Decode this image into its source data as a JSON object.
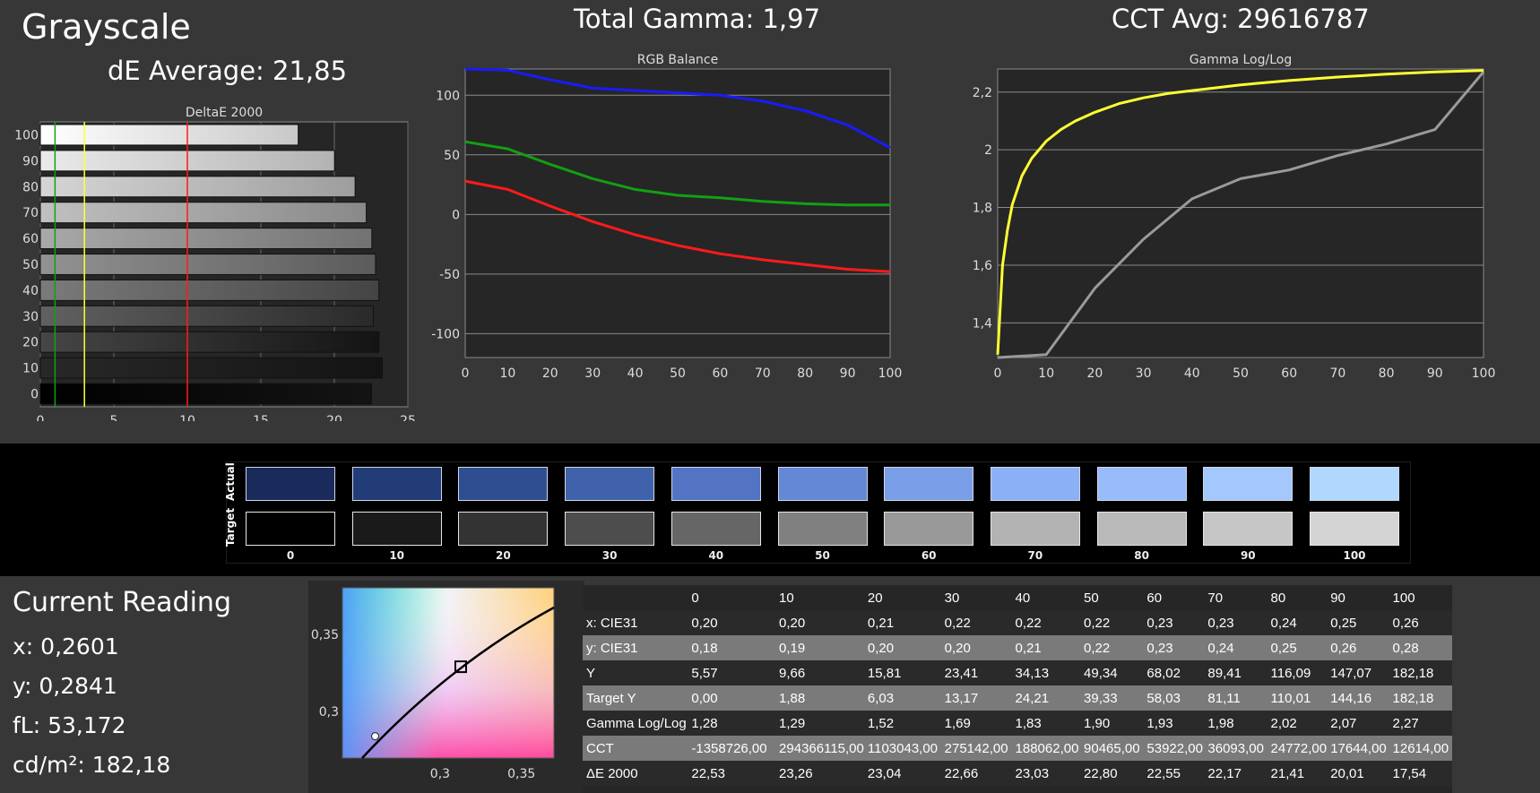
{
  "header": {
    "title": "Grayscale",
    "de_average": "dE Average: 21,85",
    "total_gamma": "Total Gamma: 1,97",
    "cct_avg": "CCT Avg: 29616787"
  },
  "colors": {
    "bg": "#373737",
    "plot_bg": "#262626",
    "red": "#ff1a1a",
    "green": "#12a012",
    "blue": "#1a1aff",
    "yellow": "#ffff33",
    "gray": "#9a9a9a"
  },
  "chart_data": [
    {
      "type": "bar",
      "title": "DeltaE 2000",
      "orientation": "horizontal",
      "categories": [
        "100",
        "90",
        "80",
        "70",
        "60",
        "50",
        "40",
        "30",
        "20",
        "10",
        "0"
      ],
      "values": [
        17.54,
        20.01,
        21.41,
        22.17,
        22.55,
        22.8,
        23.03,
        22.66,
        23.04,
        23.26,
        22.53
      ],
      "xlim": [
        0,
        25
      ],
      "xticks": [
        "0",
        "5",
        "10",
        "15",
        "20",
        "25"
      ],
      "reference_lines": [
        {
          "value": 1,
          "color": "green"
        },
        {
          "value": 3,
          "color": "yellow"
        },
        {
          "value": 10,
          "color": "red"
        }
      ],
      "grid": true
    },
    {
      "type": "line",
      "title": "RGB Balance",
      "x": [
        0,
        10,
        20,
        30,
        40,
        50,
        60,
        70,
        80,
        90,
        100
      ],
      "xlim": [
        0,
        100
      ],
      "ylim": [
        -120,
        122
      ],
      "xticks": [
        "0",
        "10",
        "20",
        "30",
        "40",
        "50",
        "60",
        "70",
        "80",
        "90",
        "100"
      ],
      "yticks": [
        {
          "value": 100,
          "label": "100"
        },
        {
          "value": 50,
          "label": "50"
        },
        {
          "value": 0,
          "label": "0"
        },
        {
          "value": -50,
          "label": "-50"
        },
        {
          "value": -100,
          "label": "-100"
        }
      ],
      "series": [
        {
          "color": "blue",
          "values": [
            122,
            121,
            113,
            106,
            104,
            102,
            100,
            95,
            87,
            75,
            56
          ]
        },
        {
          "color": "green",
          "values": [
            61,
            55,
            42,
            30,
            21,
            16,
            14,
            11,
            9,
            8,
            8
          ]
        },
        {
          "color": "red",
          "values": [
            28,
            21,
            7,
            -6,
            -17,
            -26,
            -33,
            -38,
            -42,
            -46,
            -48
          ]
        }
      ],
      "grid": true
    },
    {
      "type": "line",
      "title": "Gamma Log/Log",
      "x": [
        0,
        10,
        20,
        30,
        40,
        50,
        60,
        70,
        80,
        90,
        100
      ],
      "xlim": [
        0,
        100
      ],
      "ylim": [
        1.28,
        2.28
      ],
      "xticks": [
        "0",
        "10",
        "20",
        "30",
        "40",
        "50",
        "60",
        "70",
        "80",
        "90",
        "100"
      ],
      "yticks": [
        {
          "value": 2.2,
          "label": "2,2"
        },
        {
          "value": 2.0,
          "label": "2"
        },
        {
          "value": 1.8,
          "label": "1,8"
        },
        {
          "value": 1.6,
          "label": "1,6"
        },
        {
          "value": 1.4,
          "label": "1,4"
        }
      ],
      "series": [
        {
          "color": "gray",
          "values": [
            1.28,
            1.29,
            1.52,
            1.69,
            1.83,
            1.9,
            1.93,
            1.98,
            2.02,
            2.07,
            2.27
          ]
        },
        {
          "color": "yellow",
          "curve": "target",
          "x": [
            0,
            1,
            2,
            3,
            5,
            7,
            10,
            13,
            16,
            20,
            25,
            30,
            35,
            40,
            50,
            60,
            70,
            80,
            90,
            100
          ],
          "values": [
            1.29,
            1.6,
            1.72,
            1.81,
            1.91,
            1.97,
            2.03,
            2.07,
            2.1,
            2.13,
            2.16,
            2.18,
            2.195,
            2.205,
            2.225,
            2.24,
            2.252,
            2.262,
            2.27,
            2.275
          ]
        }
      ],
      "grid": true
    },
    {
      "type": "table",
      "columns": [
        "0",
        "10",
        "20",
        "30",
        "40",
        "50",
        "60",
        "70",
        "80",
        "90",
        "100"
      ],
      "rows": [
        {
          "label": "x: CIE31",
          "values": [
            "0,20",
            "0,20",
            "0,21",
            "0,22",
            "0,22",
            "0,22",
            "0,23",
            "0,23",
            "0,24",
            "0,25",
            "0,26"
          ]
        },
        {
          "label": "y: CIE31",
          "values": [
            "0,18",
            "0,19",
            "0,20",
            "0,20",
            "0,21",
            "0,22",
            "0,23",
            "0,24",
            "0,25",
            "0,26",
            "0,28"
          ]
        },
        {
          "label": "Y",
          "values": [
            "5,57",
            "9,66",
            "15,81",
            "23,41",
            "34,13",
            "49,34",
            "68,02",
            "89,41",
            "116,09",
            "147,07",
            "182,18"
          ]
        },
        {
          "label": "Target Y",
          "values": [
            "0,00",
            "1,88",
            "6,03",
            "13,17",
            "24,21",
            "39,33",
            "58,03",
            "81,11",
            "110,01",
            "144,16",
            "182,18"
          ]
        },
        {
          "label": "Gamma Log/Log",
          "values": [
            "1,28",
            "1,29",
            "1,52",
            "1,69",
            "1,83",
            "1,90",
            "1,93",
            "1,98",
            "2,02",
            "2,07",
            "2,27"
          ]
        },
        {
          "label": "CCT",
          "values": [
            "-1358726,00",
            "294366115,00",
            "1103043,00",
            "275142,00",
            "188062,00",
            "90465,00",
            "53922,00",
            "36093,00",
            "24772,00",
            "17644,00",
            "12614,00"
          ]
        },
        {
          "label": "ΔE 2000",
          "values": [
            "22,53",
            "23,26",
            "23,04",
            "22,66",
            "23,03",
            "22,80",
            "22,55",
            "22,17",
            "21,41",
            "20,01",
            "17,54"
          ]
        }
      ]
    },
    {
      "type": "scatter",
      "name_hint": "chromaticity",
      "xlim": [
        0.24,
        0.37
      ],
      "ylim": [
        0.27,
        0.38
      ],
      "xticks": [
        {
          "value": 0.3,
          "label": "0,3"
        },
        {
          "value": 0.35,
          "label": "0,35"
        }
      ],
      "yticks": [
        {
          "value": 0.35,
          "label": "0,35"
        },
        {
          "value": 0.3,
          "label": "0,3"
        }
      ],
      "points": [
        {
          "marker": "square",
          "x": 0.3127,
          "y": 0.329
        },
        {
          "marker": "circle",
          "x": 0.2601,
          "y": 0.2841
        }
      ]
    }
  ],
  "swatches": {
    "row_labels": [
      "Actual",
      "Target"
    ],
    "labels": [
      "0",
      "10",
      "20",
      "30",
      "40",
      "50",
      "60",
      "70",
      "80",
      "90",
      "100"
    ],
    "actual": [
      "#1a2a5a",
      "#223c78",
      "#2f4e92",
      "#3f62aa",
      "#5274c2",
      "#6488d6",
      "#7a9ee8",
      "#8cb0f6",
      "#98bcfa",
      "#a4c8fc",
      "#b0d8fe"
    ],
    "target": [
      "#000000",
      "#1a1a1a",
      "#333333",
      "#4d4d4d",
      "#666666",
      "#808080",
      "#999999",
      "#b3b3b3",
      "#b9b9b9",
      "#c6c6c6",
      "#d4d4d4"
    ]
  },
  "current_reading": {
    "title": "Current Reading",
    "x": "x: 0,2601",
    "y": "y: 0,2841",
    "fl": "fL: 53,172",
    "cdm2": "cd/m²: 182,18"
  }
}
